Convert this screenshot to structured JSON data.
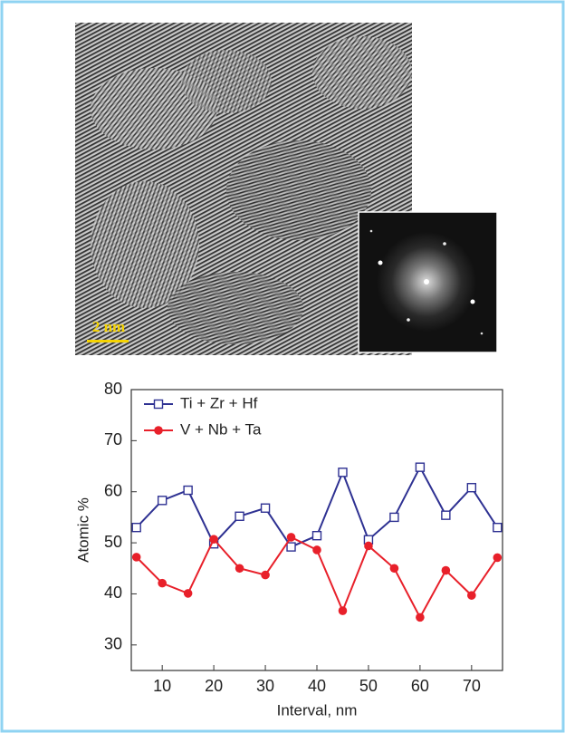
{
  "figure": {
    "scale_bar": "2 nm"
  },
  "chart_data": {
    "type": "line",
    "xlabel": "Interval, nm",
    "ylabel": "Atomic %",
    "x": [
      5,
      10,
      15,
      20,
      25,
      30,
      35,
      40,
      45,
      50,
      55,
      60,
      65,
      70,
      75
    ],
    "series": [
      {
        "name": "Ti + Zr + Hf",
        "color": "#2e3192",
        "marker": "square-open",
        "values": [
          53,
          58.3,
          60.3,
          49.8,
          55.2,
          56.8,
          49.2,
          51.4,
          63.8,
          50.6,
          55,
          64.8,
          55.4,
          60.8,
          53
        ]
      },
      {
        "name": "V + Nb + Ta",
        "color": "#e8202a",
        "marker": "circle",
        "values": [
          47.2,
          42.1,
          40.1,
          50.7,
          45,
          43.7,
          51.1,
          48.6,
          36.7,
          49.4,
          45,
          35.4,
          44.6,
          39.7,
          47.1
        ]
      }
    ],
    "xlim": [
      4,
      76
    ],
    "ylim": [
      25,
      80
    ],
    "xticks": [
      10,
      20,
      30,
      40,
      50,
      60,
      70
    ],
    "yticks": [
      30,
      40,
      50,
      60,
      70,
      80
    ],
    "legend": "upper left"
  }
}
